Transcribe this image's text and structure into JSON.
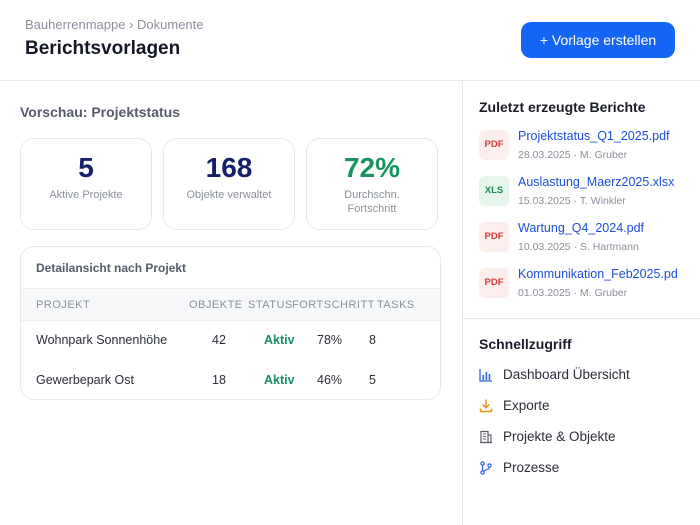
{
  "header": {
    "breadcrumb": "Bauherrenmappe › Dokumente",
    "title": "Berichtsvorlagen",
    "create_label": "+ Vorlage erstellen"
  },
  "preview": {
    "title": "Vorschau: Projektstatus",
    "kpis": [
      {
        "value": "5",
        "label": "Aktive Projekte"
      },
      {
        "value": "168",
        "label": "Objekte verwaltet"
      },
      {
        "value": "72%",
        "label": "Durchschn. Fortschritt"
      }
    ],
    "detail": {
      "title": "Detailansicht nach Projekt",
      "columns": [
        "PROJEKT",
        "OBJEKTE",
        "STATUS",
        "FORTSCHRITT",
        "TASKS"
      ],
      "rows": [
        {
          "projekt": "Wohnpark Sonnenhöhe",
          "objekte": "42",
          "status": "Aktiv",
          "fortschritt": "78%",
          "tasks": "8"
        },
        {
          "projekt": "Gewerbepark Ost",
          "objekte": "18",
          "status": "Aktiv",
          "fortschritt": "46%",
          "tasks": "5"
        }
      ]
    }
  },
  "sidebar": {
    "recent_title": "Zuletzt erzeugte Berichte",
    "reports": [
      {
        "type": "PDF",
        "name": "Projektstatus_Q1_2025.pdf",
        "meta": "28.03.2025 · M. Gruber"
      },
      {
        "type": "XLS",
        "name": "Auslastung_Maerz2025.xlsx",
        "meta": "15.03.2025 · T. Winkler"
      },
      {
        "type": "PDF",
        "name": "Wartung_Q4_2024.pdf",
        "meta": "10.03.2025 · S. Hartmann"
      },
      {
        "type": "PDF",
        "name": "Kommunikation_Feb2025.pd",
        "meta": "01.03.2025 · M. Gruber"
      }
    ],
    "quick_title": "Schnellzugriff",
    "quick_links": [
      {
        "icon": "bar-chart-icon",
        "label": "Dashboard Übersicht"
      },
      {
        "icon": "download-icon",
        "label": "Exporte"
      },
      {
        "icon": "building-icon",
        "label": "Projekte & Objekte"
      },
      {
        "icon": "workflow-icon",
        "label": "Prozesse"
      }
    ]
  },
  "colors": {
    "primary": "#1565f5",
    "kpi_navy": "#14206a",
    "success": "#17935f",
    "link": "#1c4fd6",
    "pdf": "#d23b3b",
    "xls": "#1e8a4c"
  }
}
